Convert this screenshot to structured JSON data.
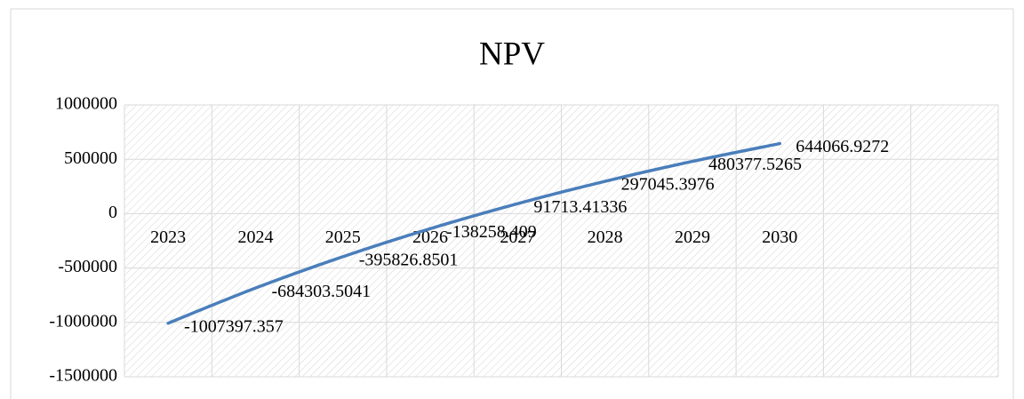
{
  "chart_data": {
    "type": "line",
    "title": "NPV",
    "categories": [
      "2023",
      "2024",
      "2025",
      "2026",
      "2027",
      "2028",
      "2029",
      "2030",
      null,
      null
    ],
    "series": [
      {
        "name": "NPV",
        "color": "#4a7ebb",
        "values": [
          -1007397.357,
          -684303.5041,
          -395826.8501,
          -138258.409,
          91713.41336,
          297045.3976,
          480377.5265,
          644066.9272,
          null,
          null
        ]
      }
    ],
    "ylim": [
      -1500000,
      1000000
    ],
    "yticks": [
      -1500000,
      -1000000,
      -500000,
      0,
      500000,
      1000000
    ],
    "grid": true
  }
}
